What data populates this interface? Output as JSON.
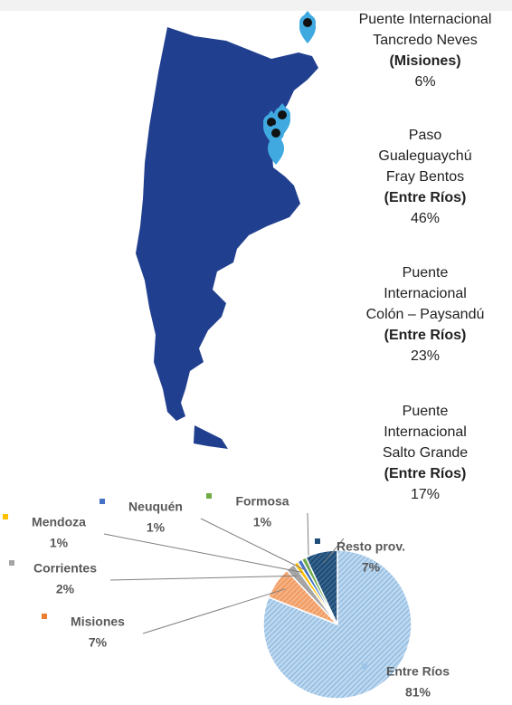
{
  "crossings": [
    {
      "lines": [
        "Puente Internacional",
        "Tancredo Neves"
      ],
      "province": "(Misiones)",
      "share": "6%"
    },
    {
      "lines": [
        "Paso",
        "Gualeguaychú",
        "Fray Bentos"
      ],
      "province": "(Entre Ríos)",
      "share": "46%"
    },
    {
      "lines": [
        "Puente",
        "Internacional",
        "Colón – Paysandú"
      ],
      "province": "(Entre Ríos)",
      "share": "23%"
    },
    {
      "lines": [
        "Puente",
        "Internacional",
        "Salto Grande"
      ],
      "province": "(Entre Ríos)",
      "share": "17%"
    }
  ],
  "chart_data": {
    "type": "pie",
    "categories": [
      "Entre Ríos",
      "Misiones",
      "Corrientes",
      "Mendoza",
      "Neuquén",
      "Formosa",
      "Resto prov."
    ],
    "values": [
      81,
      7,
      2,
      1,
      1,
      1,
      7
    ],
    "value_labels": [
      "81%",
      "7%",
      "2%",
      "1%",
      "1%",
      "1%",
      "7%"
    ],
    "colors": [
      "#9dc3e6",
      "#ed7d31",
      "#a5a5a5",
      "#ffc000",
      "#4472c4",
      "#70ad47",
      "#1f4e79"
    ]
  }
}
